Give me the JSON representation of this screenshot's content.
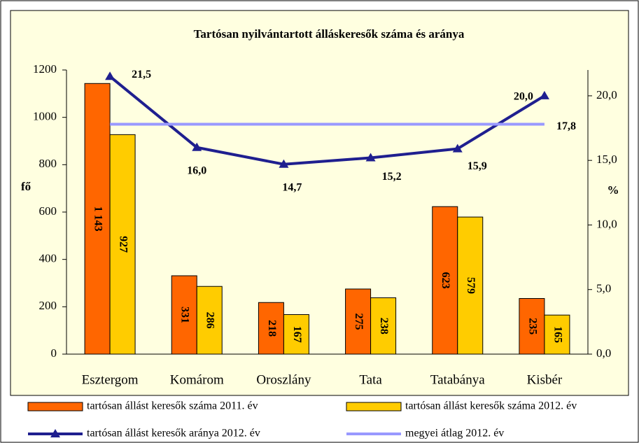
{
  "chart_data": {
    "type": "bar",
    "title": "Tartósan nyilvántartott álláskeresők száma és aránya",
    "y_label": "fő",
    "y2_label": "%",
    "categories": [
      "Esztergom",
      "Komárom",
      "Oroszlány",
      "Tata",
      "Tatabánya",
      "Kisbér"
    ],
    "series": [
      {
        "name": "tartósan állást keresők száma 2011. év",
        "type": "bar",
        "color": "#ff6600",
        "values": [
          1143,
          331,
          218,
          275,
          623,
          235
        ],
        "value_labels": [
          "1 143",
          "331",
          "218",
          "275",
          "623",
          "235"
        ]
      },
      {
        "name": "tartósan állást keresők száma 2012. év",
        "type": "bar",
        "color": "#ffcc00",
        "values": [
          927,
          286,
          167,
          238,
          579,
          165
        ]
      },
      {
        "name": "tartósan állást keresők aránya 2012. év",
        "type": "line",
        "axis": "y2",
        "color": "#1f1f8f",
        "values": [
          21.5,
          16.0,
          14.7,
          15.2,
          15.9,
          20.0
        ],
        "value_labels": [
          "21,5",
          "16,0",
          "14,7",
          "15,2",
          "15,9",
          "20,0"
        ]
      },
      {
        "name": "megyei átlag 2012. év",
        "type": "hline",
        "axis": "y2",
        "color": "#9999ff",
        "value": 17.8,
        "value_label": "17,8"
      }
    ],
    "ylim": [
      0,
      1200
    ],
    "yticks": [
      0,
      200,
      400,
      600,
      800,
      1000,
      1200
    ],
    "y2lim": [
      0,
      22
    ],
    "y2ticks": [
      {
        "value": 0,
        "label": "0,0"
      },
      {
        "value": 5,
        "label": "5,0"
      },
      {
        "value": 10,
        "label": "10,0"
      },
      {
        "value": 15,
        "label": "15,0"
      },
      {
        "value": 20,
        "label": "20,0"
      }
    ]
  }
}
